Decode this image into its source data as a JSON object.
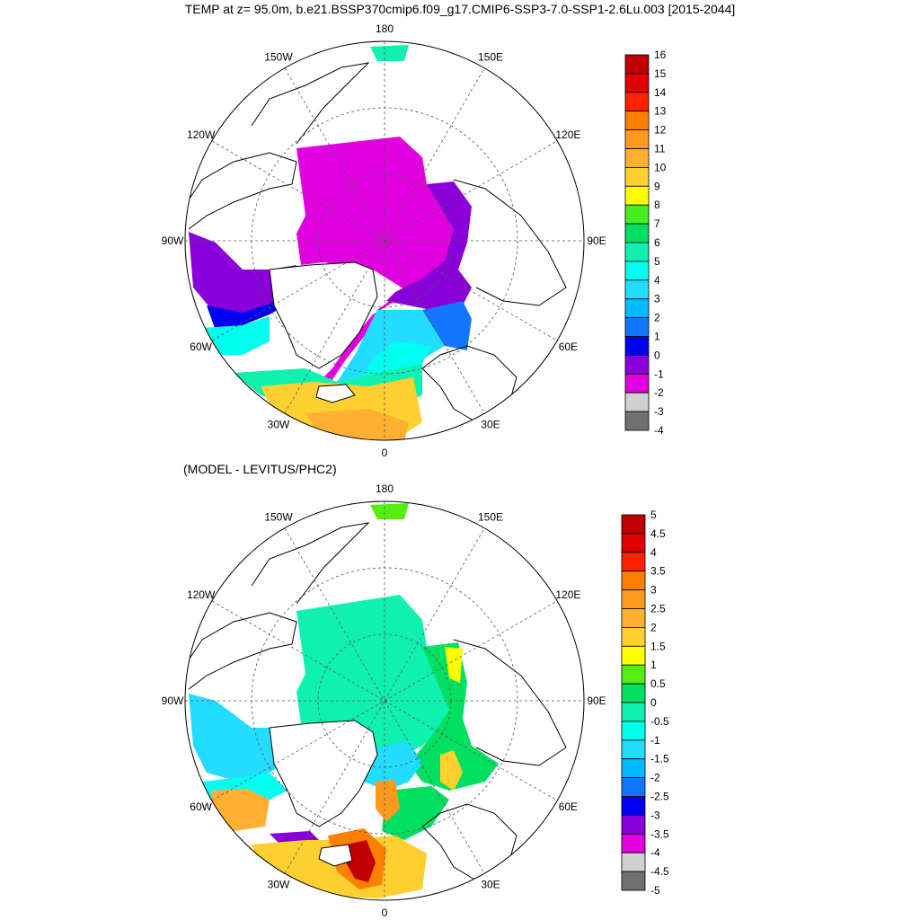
{
  "title": "TEMP at z=  95.0m, b.e21.BSSP370cmip6.f09_g17.CMIP6-SSP3-7.0-SSP1-2.6Lu.003 [2015-2044]",
  "subtitle": "(MODEL - LEVITUS/PHC2)",
  "longitude_labels": [
    "180",
    "150E",
    "120E",
    "90E",
    "60E",
    "30E",
    "0",
    "30W",
    "60W",
    "90W",
    "120W",
    "150W"
  ],
  "colors": {
    "land_outline": "#000000",
    "background": "#ffffff",
    "grid": "#555555"
  },
  "map_top": {
    "name": "temperature",
    "colorbar": {
      "labels": [
        "16",
        "15",
        "14",
        "13",
        "12",
        "11",
        "10",
        "9",
        "8",
        "7",
        "6",
        "5",
        "4",
        "3",
        "2",
        "1",
        "0",
        "-1",
        "-2",
        "-3",
        "-4"
      ],
      "colors": [
        "#c00000",
        "#e00000",
        "#ff2200",
        "#ff8000",
        "#ff9a1e",
        "#ffb030",
        "#ffd030",
        "#ffff00",
        "#44ee22",
        "#00e060",
        "#10f0b0",
        "#00ffee",
        "#22ddff",
        "#00bbff",
        "#1177ff",
        "#0000ee",
        "#8a00d8",
        "#e000e0",
        "#d0d0d0",
        "#707070"
      ]
    }
  },
  "map_bottom": {
    "name": "difference",
    "colorbar": {
      "labels": [
        "5",
        "4.5",
        "4",
        "3.5",
        "3",
        "2.5",
        "2",
        "1.5",
        "1",
        "0.5",
        "0",
        "-0.5",
        "-1",
        "-1.5",
        "-2",
        "-2.5",
        "-3",
        "-3.5",
        "-4",
        "-4.5",
        "-5"
      ],
      "colors": [
        "#c00000",
        "#e00000",
        "#ff2200",
        "#ff8000",
        "#ff9a1e",
        "#ffb030",
        "#ffd030",
        "#ffff00",
        "#55ee11",
        "#00e060",
        "#10f0b0",
        "#00ffee",
        "#22ddff",
        "#00bbff",
        "#1177ff",
        "#0000ee",
        "#8a00d8",
        "#e000e0",
        "#d0d0d0",
        "#707070"
      ]
    }
  }
}
